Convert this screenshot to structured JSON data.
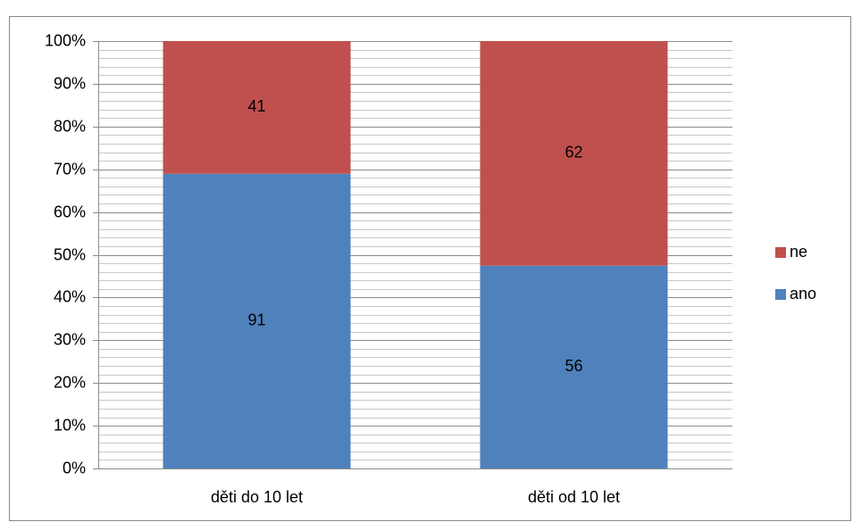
{
  "chart_data": {
    "type": "bar",
    "stacking": "percent",
    "categories": [
      "děti do 10 let",
      "děti od 10 let"
    ],
    "series": [
      {
        "name": "ano",
        "color": "#4f81bd",
        "values": [
          91,
          56
        ]
      },
      {
        "name": "ne",
        "color": "#c0504d",
        "values": [
          41,
          62
        ]
      }
    ],
    "ylim": [
      0,
      100
    ],
    "yticks": [
      {
        "value": 0,
        "label": "0%"
      },
      {
        "value": 10,
        "label": "10%"
      },
      {
        "value": 20,
        "label": "20%"
      },
      {
        "value": 30,
        "label": "30%"
      },
      {
        "value": 40,
        "label": "40%"
      },
      {
        "value": 50,
        "label": "50%"
      },
      {
        "value": 60,
        "label": "60%"
      },
      {
        "value": 70,
        "label": "70%"
      },
      {
        "value": 80,
        "label": "80%"
      },
      {
        "value": 90,
        "label": "90%"
      },
      {
        "value": 100,
        "label": "100%"
      }
    ],
    "grid": true,
    "minor_grid": true,
    "legend": "right"
  }
}
